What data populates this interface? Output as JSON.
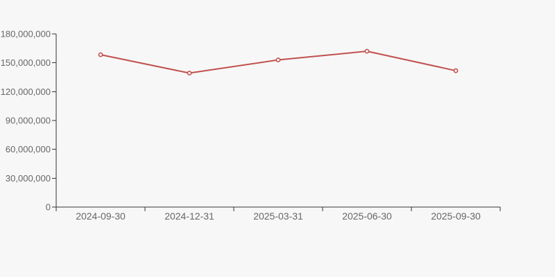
{
  "chart_data": {
    "type": "line",
    "categories": [
      "2024-09-30",
      "2024-12-31",
      "2025-03-31",
      "2025-06-30",
      "2025-09-30"
    ],
    "series": [
      {
        "name": "value",
        "values": [
          158400000,
          139300000,
          153000000,
          162000000,
          141800000
        ]
      }
    ],
    "title": "",
    "xlabel": "",
    "ylabel": "",
    "ylim": [
      0,
      180000000
    ],
    "yticks": [
      0,
      30000000,
      60000000,
      90000000,
      120000000,
      150000000,
      180000000
    ],
    "ytick_labels": [
      "0",
      "30,000,000",
      "60,000,000",
      "90,000,000",
      "120,000,000",
      "150,000,000",
      "180,000,000"
    ],
    "grid": "off",
    "legend": "none",
    "marker": "open-circle"
  },
  "colors": {
    "line": "#c0504d",
    "marker_fill": "#ffffff",
    "axis": "#333333",
    "tick_label": "#666666",
    "background": "#f7f7f7"
  }
}
